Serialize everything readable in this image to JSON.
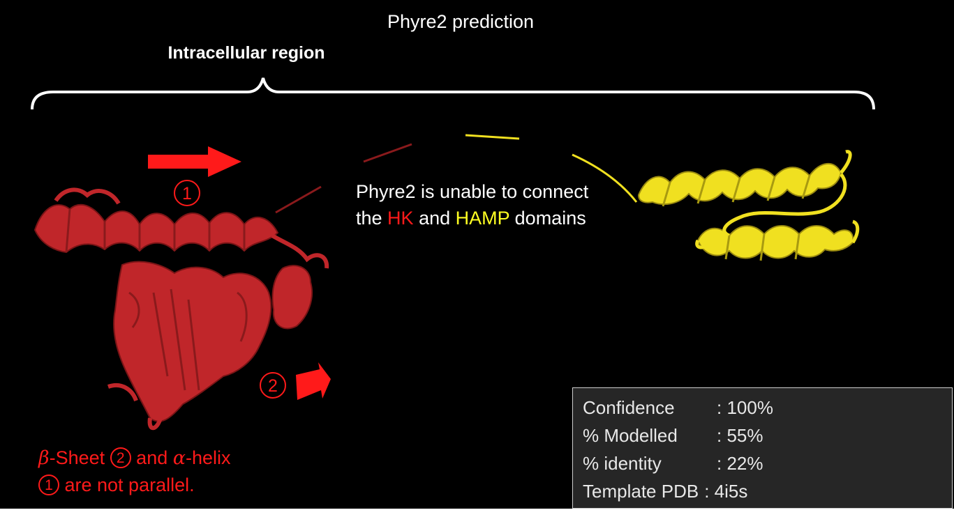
{
  "title": "Phyre2 prediction",
  "region_label": "Intracellular region",
  "marker_1": "1",
  "marker_2": "2",
  "message": {
    "line1": "Phyre2 is unable to connect",
    "line2_prefix": "the ",
    "hk": "HK",
    "and": " and ",
    "hamp": "HAMP",
    "line2_suffix": " domains"
  },
  "note": {
    "beta": "β",
    "part1": "-Sheet ",
    "marker_2": "2",
    "part2": " and ",
    "alpha": "α",
    "part3": "-helix",
    "marker_1": "1",
    "part4": " are  not parallel."
  },
  "stats": [
    {
      "label": "Confidence",
      "value": ": 100%"
    },
    {
      "label": "% Modelled",
      "value": ": 55%"
    },
    {
      "label": "% identity",
      "value": ": 22%"
    },
    {
      "label": "Template PDB",
      "value": ": 4i5s"
    }
  ],
  "colors": {
    "hk_domain": "#c0262a",
    "hamp_domain": "#f0e020",
    "arrow": "#ff1a1a",
    "background": "#000000"
  }
}
